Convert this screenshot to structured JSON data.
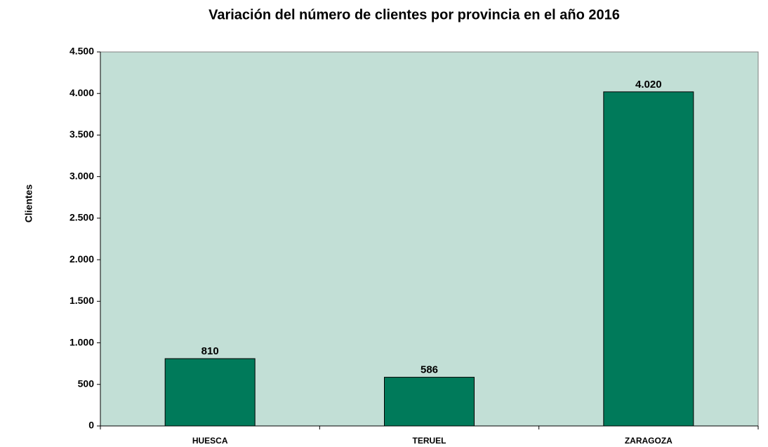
{
  "chart_data": {
    "type": "bar",
    "title": "Variación del número de clientes por provincia en el año 2016",
    "y_label": "Clientes",
    "categories": [
      "HUESCA",
      "TERUEL",
      "ZARAGOZA"
    ],
    "values": [
      810,
      586,
      4020
    ],
    "value_labels": [
      "810",
      "586",
      "4.020"
    ],
    "color": "#007a5a",
    "background": "#c2dfd6",
    "ylim": [
      0,
      4500
    ],
    "yticks": [
      0,
      500,
      {
        "value": 1000,
        "label": "1.000"
      },
      {
        "value": 1500,
        "label": "1.500"
      },
      {
        "value": 2000,
        "label": "2.000"
      },
      {
        "value": 2500,
        "label": "2.500"
      },
      {
        "value": 3000,
        "label": "3.000"
      },
      {
        "value": 3500,
        "label": "3.500"
      },
      {
        "value": 4000,
        "label": "4.000"
      },
      {
        "value": 4500,
        "label": "4.500"
      }
    ]
  }
}
